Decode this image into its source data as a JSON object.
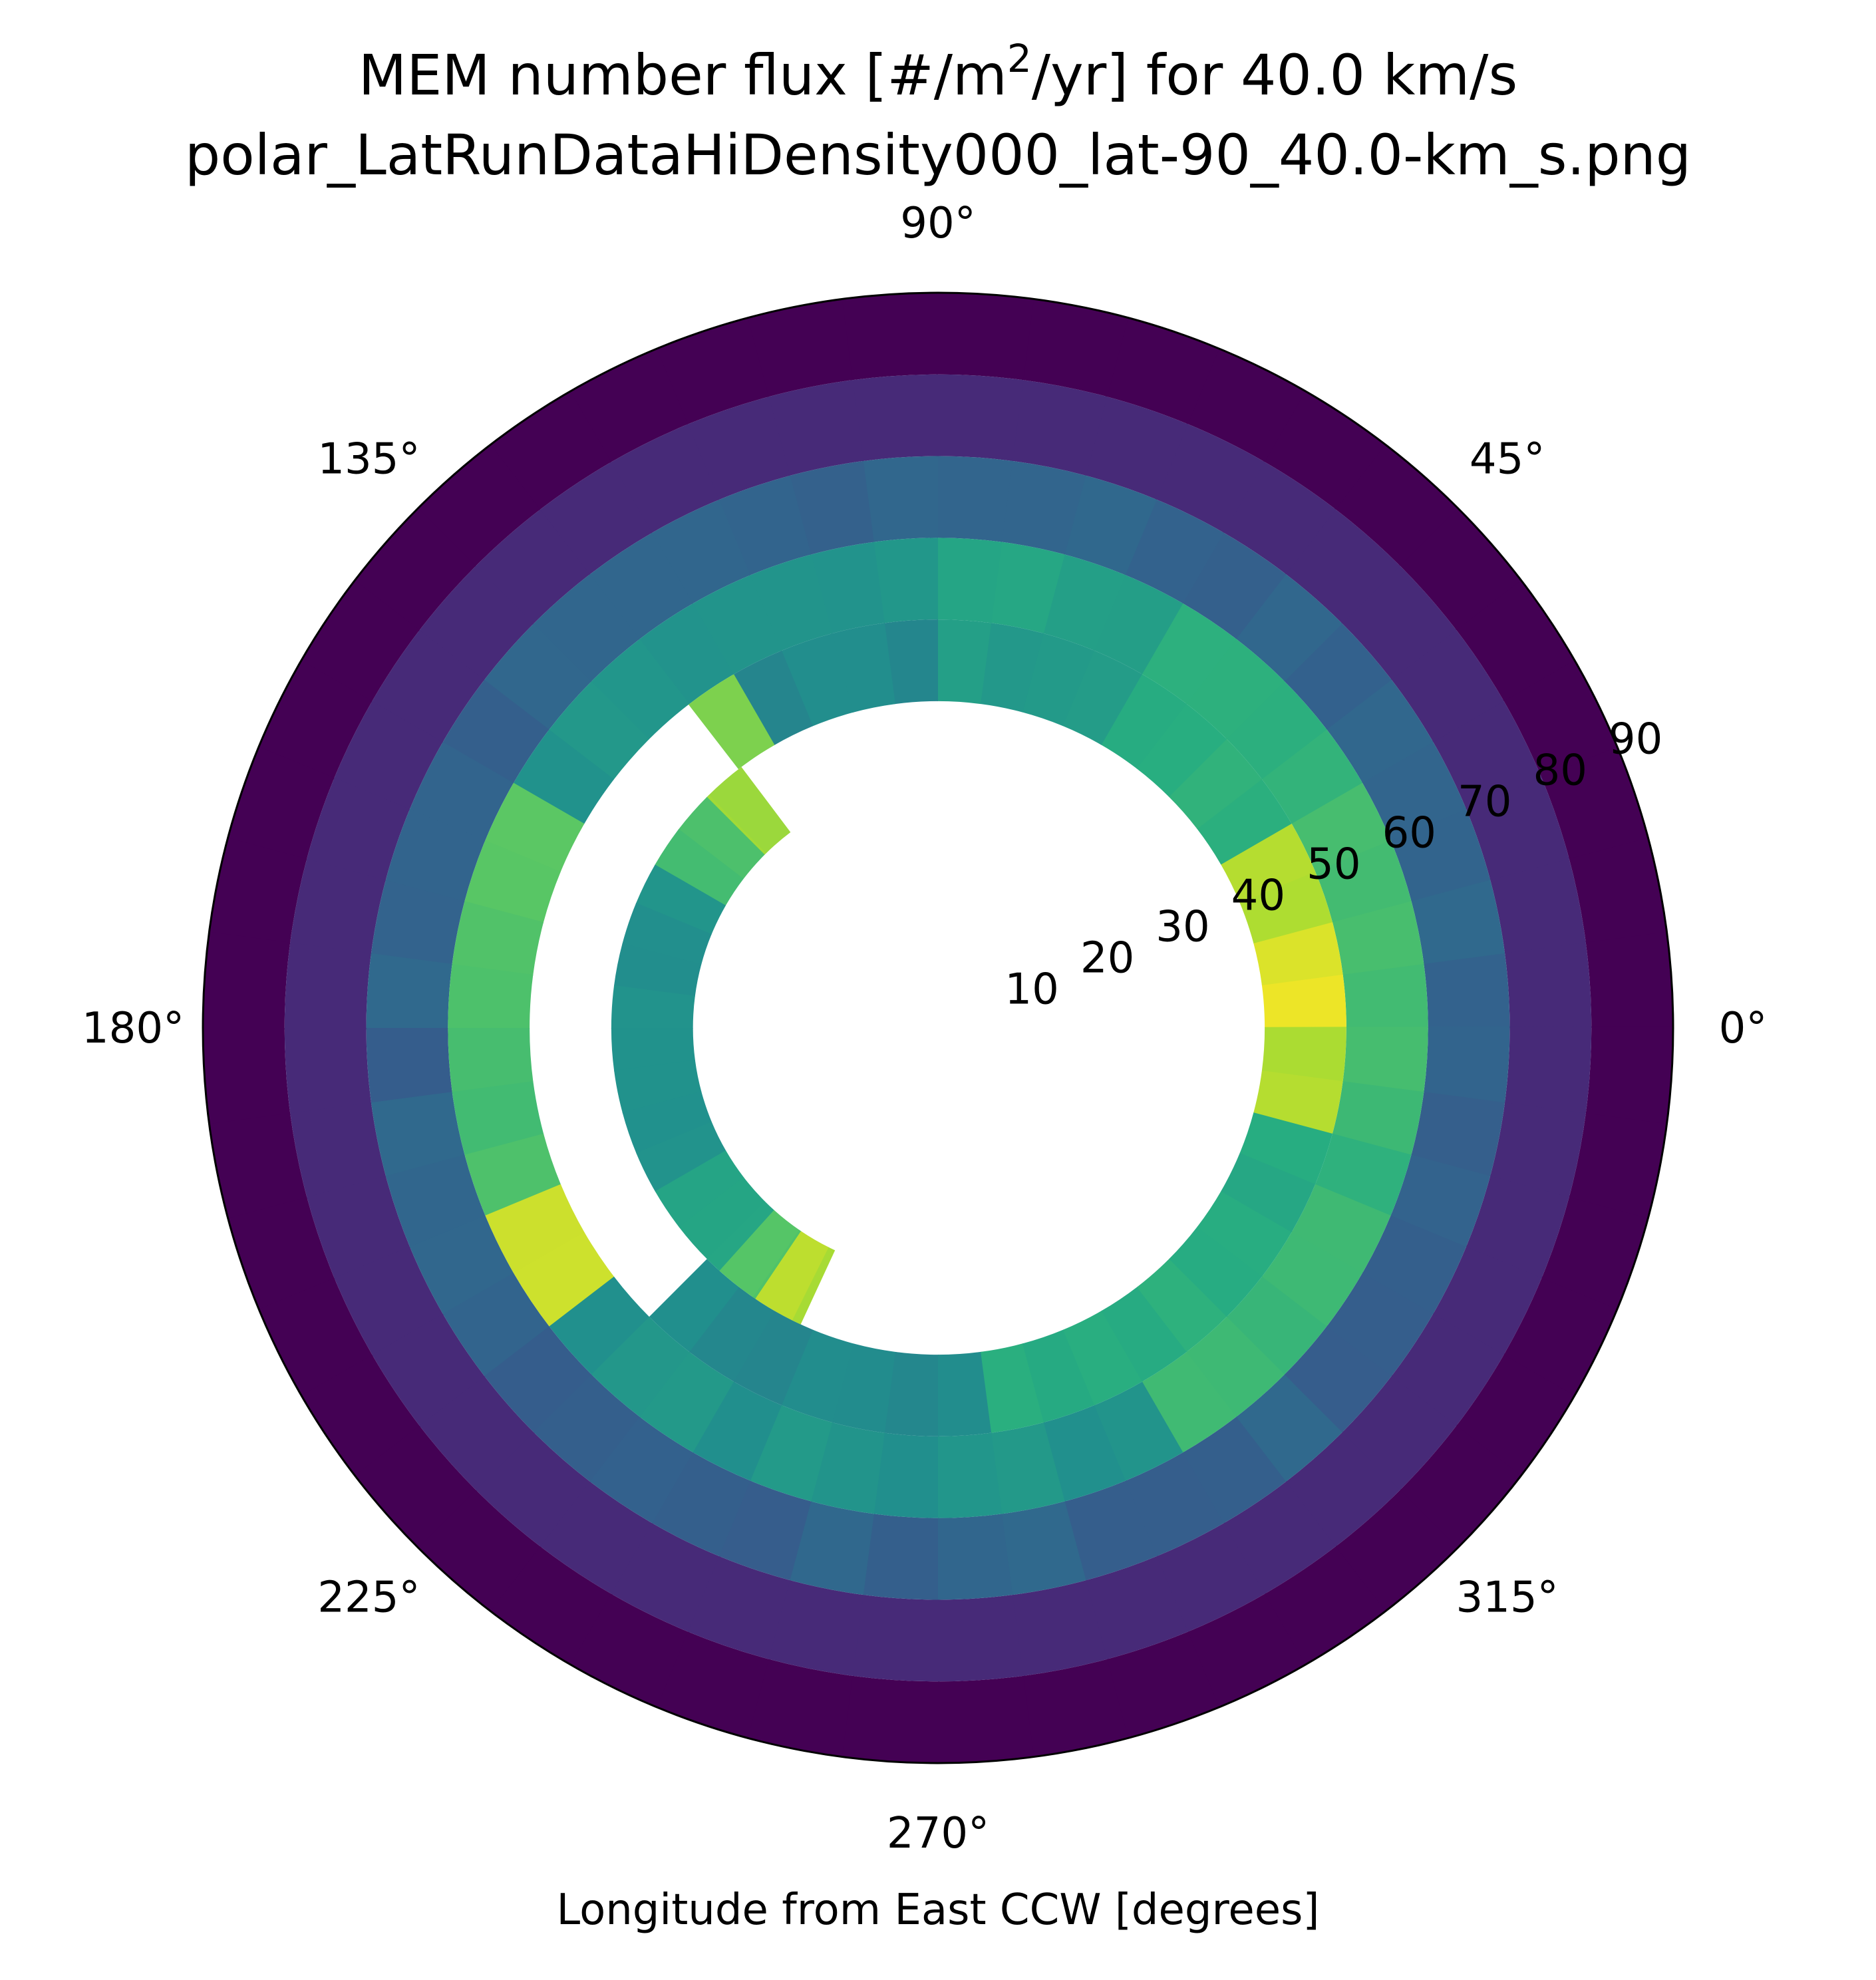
{
  "chart_data": {
    "type": "heatmap",
    "projection": "polar",
    "title_prefix": "MEM number flux [#/m",
    "title_superscript": "2",
    "title_suffix": "/yr] for 40.0 km/s",
    "subtitle": "polar_LatRunDataHiDensity000_lat-90_40.0-km_s.png",
    "xlabel": "Longitude from East CCW [degrees]",
    "angular_ticks": [
      {
        "angle": 0,
        "label": "0°"
      },
      {
        "angle": 45,
        "label": "45°"
      },
      {
        "angle": 90,
        "label": "90°"
      },
      {
        "angle": 135,
        "label": "135°"
      },
      {
        "angle": 180,
        "label": "180°"
      },
      {
        "angle": 225,
        "label": "225°"
      },
      {
        "angle": 270,
        "label": "270°"
      },
      {
        "angle": 315,
        "label": "315°"
      }
    ],
    "radial_ticks": [
      "10",
      "20",
      "30",
      "40",
      "50",
      "60",
      "70",
      "80",
      "90"
    ],
    "radial_range": [
      0,
      90
    ],
    "radial_tick_angle_deg": 22.5,
    "angular_bin_width_deg": 7.5,
    "colormap": "viridis",
    "color_range": [
      0,
      1
    ],
    "rings": [
      {
        "r_inner": 80,
        "r_outer": 90,
        "default": 0.0,
        "overrides": []
      },
      {
        "r_inner": 70,
        "r_outer": 80,
        "default": 0.12,
        "overrides": []
      },
      {
        "r_inner": 60,
        "r_outer": 70,
        "default": 0.32,
        "overrides": []
      },
      {
        "r_inner": 50,
        "r_outer": 60,
        "default": 0.52,
        "overrides": [
          {
            "from": 345,
            "to": 30,
            "value": 0.7
          },
          {
            "from": 30,
            "to": 60,
            "value": 0.65
          },
          {
            "from": 60,
            "to": 90,
            "value": 0.58
          },
          {
            "from": 150,
            "to": 165,
            "value": 0.76
          },
          {
            "from": 165,
            "to": 200,
            "value": 0.7
          },
          {
            "from": 200,
            "to": 215,
            "value": 0.93
          },
          {
            "from": 300,
            "to": 345,
            "value": 0.66
          }
        ]
      },
      {
        "r_inner": 40,
        "r_outer": 50,
        "default": 0.48,
        "overrides": [
          {
            "from": 345,
            "to": 30,
            "value": 0.88
          },
          {
            "from": 0,
            "to": 15,
            "value": 0.96
          },
          {
            "from": 30,
            "to": 60,
            "value": 0.64
          },
          {
            "from": 60,
            "to": 90,
            "value": 0.55
          },
          {
            "from": 120,
            "to": 135,
            "value": 0.82
          },
          {
            "from": 280,
            "to": 345,
            "value": 0.62
          }
        ],
        "gaps": [
          {
            "from": 130,
            "to": 223
          }
        ]
      },
      {
        "r_inner": 30,
        "r_outer": 40,
        "default": 0.5,
        "segments": [
          {
            "from": 127,
            "to": 135,
            "value": 0.86
          },
          {
            "from": 135,
            "to": 150,
            "value": 0.7
          },
          {
            "from": 150,
            "to": 210,
            "value": 0.5
          },
          {
            "from": 210,
            "to": 228,
            "value": 0.6
          },
          {
            "from": 228,
            "to": 236,
            "value": 0.74
          },
          {
            "from": 236,
            "to": 245,
            "value": 0.88
          }
        ]
      }
    ]
  }
}
